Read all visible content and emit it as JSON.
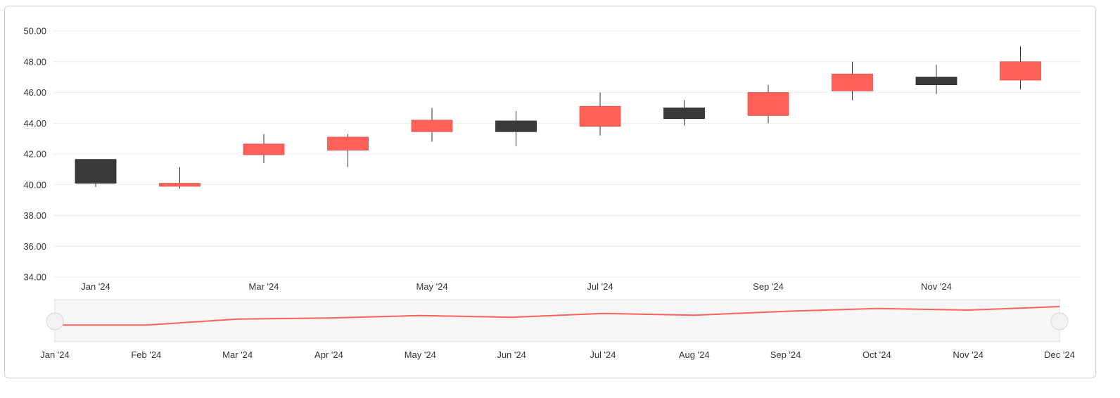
{
  "chart_data": {
    "type": "candlestick",
    "title": "",
    "xlabel": "",
    "ylabel": "",
    "ylim": [
      33,
      51
    ],
    "y_ticks": [
      "34.00",
      "36.00",
      "38.00",
      "40.00",
      "42.00",
      "44.00",
      "46.00",
      "48.00",
      "50.00"
    ],
    "x_ticks_main": [
      "Jan '24",
      "Mar '24",
      "May '24",
      "Jul '24",
      "Sep '24",
      "Nov '24"
    ],
    "x_ticks_navigator": [
      "Jan '24",
      "Feb '24",
      "Mar '24",
      "Apr '24",
      "May '24",
      "Jun '24",
      "Jul '24",
      "Aug '24",
      "Sep '24",
      "Oct '24",
      "Nov '24",
      "Dec '24"
    ],
    "grid": true,
    "colors": {
      "up": "#ff6159",
      "down": "#3a3a3a",
      "navigator_line": "#ff6159"
    },
    "candles": [
      {
        "x": "2024-01",
        "open": 41.65,
        "high": 41.65,
        "low": 39.85,
        "close": 40.1
      },
      {
        "x": "2024-02",
        "open": 39.9,
        "high": 41.15,
        "low": 39.75,
        "close": 40.1
      },
      {
        "x": "2024-03",
        "open": 41.95,
        "high": 43.3,
        "low": 41.4,
        "close": 42.65
      },
      {
        "x": "2024-04",
        "open": 42.25,
        "high": 43.3,
        "low": 41.15,
        "close": 43.1
      },
      {
        "x": "2024-05",
        "open": 43.45,
        "high": 45.0,
        "low": 42.8,
        "close": 44.2
      },
      {
        "x": "2024-06",
        "open": 44.15,
        "high": 44.8,
        "low": 42.5,
        "close": 43.45
      },
      {
        "x": "2024-07",
        "open": 43.8,
        "high": 46.0,
        "low": 43.2,
        "close": 45.1
      },
      {
        "x": "2024-08",
        "open": 45.0,
        "high": 45.5,
        "low": 43.85,
        "close": 44.3
      },
      {
        "x": "2024-09",
        "open": 44.5,
        "high": 46.5,
        "low": 44.0,
        "close": 46.0
      },
      {
        "x": "2024-10",
        "open": 46.1,
        "high": 48.0,
        "low": 45.5,
        "close": 47.2
      },
      {
        "x": "2024-11",
        "open": 47.0,
        "high": 47.8,
        "low": 45.9,
        "close": 46.5
      },
      {
        "x": "2024-12",
        "open": 46.8,
        "high": 49.0,
        "low": 46.2,
        "close": 48.0
      }
    ]
  }
}
